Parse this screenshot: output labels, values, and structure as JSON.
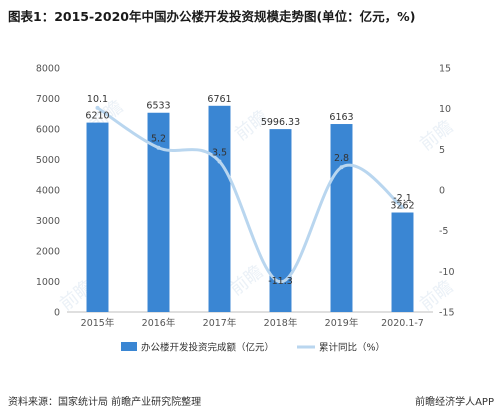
{
  "title": "图表1：2015-2020年中国办公楼开发投资规模走势图(单位：亿元，%)",
  "footer": {
    "source": "资料来源：国家统计局 前瞻产业研究院整理",
    "brand": "前瞻经济学人APP"
  },
  "colors": {
    "bar": "#3a86d3",
    "line": "#b9d6ef",
    "axis_text": "#555555"
  },
  "chart_data": {
    "type": "bar",
    "categories": [
      "2015年",
      "2016年",
      "2017年",
      "2018年",
      "2019年",
      "2020.1-7"
    ],
    "series": [
      {
        "name": "办公楼开发投资完成额（亿元）",
        "type": "bar",
        "axis": "left",
        "values": [
          6210,
          6533,
          6761,
          5996.33,
          6163,
          3262
        ],
        "labels": [
          "6210",
          "6533",
          "6761",
          "5996.33",
          "6163",
          "3262"
        ]
      },
      {
        "name": "累计同比（%）",
        "type": "line",
        "axis": "right",
        "smooth": true,
        "values": [
          10.1,
          5.2,
          3.5,
          -11.3,
          2.8,
          -2.1
        ],
        "labels": [
          "10.1",
          "5.2",
          "3.5",
          "-11.3",
          "2.8",
          "-2.1"
        ]
      }
    ],
    "y_left": {
      "min": 0,
      "max": 8000,
      "ticks": [
        "0",
        "1000",
        "2000",
        "3000",
        "4000",
        "5000",
        "6000",
        "7000",
        "8000"
      ]
    },
    "y_right": {
      "min": -15,
      "max": 15,
      "ticks": [
        "-15",
        "-10",
        "-5",
        "0",
        "5",
        "10",
        "15"
      ]
    },
    "grid": false,
    "legend": "bottom"
  }
}
